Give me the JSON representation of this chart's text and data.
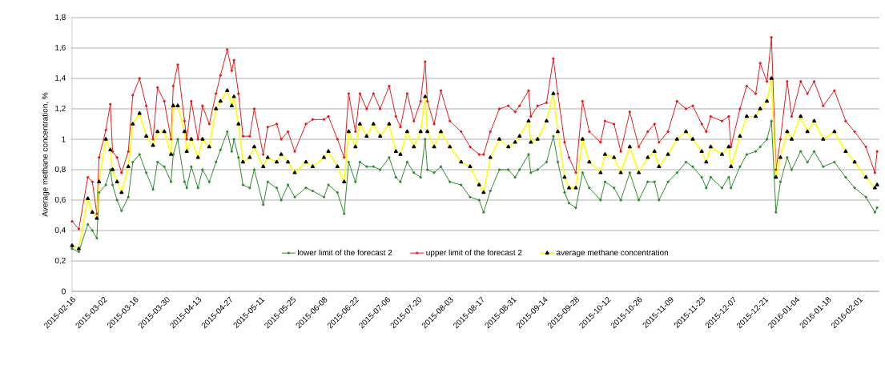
{
  "chart_data": {
    "type": "line",
    "ylabel": "Average methane concentration, %",
    "x": [
      "2015-02-16",
      "2015-02-19",
      "2015-02-23",
      "2015-02-25",
      "2015-02-27",
      "2015-02-28",
      "2015-03-03",
      "2015-03-05",
      "2015-03-06",
      "2015-03-08",
      "2015-03-10",
      "2015-03-13",
      "2015-03-15",
      "2015-03-18",
      "2015-03-21",
      "2015-03-24",
      "2015-03-26",
      "2015-03-29",
      "2015-04-01",
      "2015-04-02",
      "2015-04-04",
      "2015-04-07",
      "2015-04-08",
      "2015-04-10",
      "2015-04-13",
      "2015-04-15",
      "2015-04-18",
      "2015-04-21",
      "2015-04-23",
      "2015-04-26",
      "2015-04-28",
      "2015-04-29",
      "2015-05-01",
      "2015-05-03",
      "2015-05-06",
      "2015-05-08",
      "2015-05-12",
      "2015-05-14",
      "2015-05-18",
      "2015-05-20",
      "2015-05-23",
      "2015-05-26",
      "2015-05-31",
      "2015-06-03",
      "2015-06-08",
      "2015-06-10",
      "2015-06-14",
      "2015-06-17",
      "2015-06-19",
      "2015-06-22",
      "2015-06-24",
      "2015-06-27",
      "2015-06-30",
      "2015-07-03",
      "2015-07-07",
      "2015-07-10",
      "2015-07-12",
      "2015-07-15",
      "2015-07-18",
      "2015-07-21",
      "2015-07-23",
      "2015-07-24",
      "2015-07-27",
      "2015-07-30",
      "2015-08-03",
      "2015-08-08",
      "2015-08-12",
      "2015-08-16",
      "2015-08-18",
      "2015-08-21",
      "2015-08-25",
      "2015-08-29",
      "2015-09-01",
      "2015-09-03",
      "2015-09-07",
      "2015-09-08",
      "2015-09-11",
      "2015-09-15",
      "2015-09-18",
      "2015-09-20",
      "2015-09-23",
      "2015-09-25",
      "2015-09-28",
      "2015-10-01",
      "2015-10-04",
      "2015-10-09",
      "2015-10-11",
      "2015-10-15",
      "2015-10-18",
      "2015-10-22",
      "2015-10-26",
      "2015-10-30",
      "2015-11-02",
      "2015-11-04",
      "2015-11-08",
      "2015-11-12",
      "2015-11-16",
      "2015-11-19",
      "2015-11-23",
      "2015-11-25",
      "2015-11-27",
      "2015-12-02",
      "2015-12-05",
      "2015-12-06",
      "2015-12-10",
      "2015-12-13",
      "2015-12-17",
      "2015-12-19",
      "2015-12-22",
      "2015-12-24",
      "2015-12-26",
      "2015-12-28",
      "2015-12-31",
      "2016-01-02",
      "2016-01-06",
      "2016-01-09",
      "2016-01-12",
      "2016-01-16",
      "2016-01-21",
      "2016-01-26",
      "2016-01-30",
      "2016-02-04",
      "2016-02-08",
      "2016-02-09"
    ],
    "series": [
      {
        "name": "lower limit of the forecast 2",
        "color": "#2e8b2e",
        "marker": "circle",
        "values": [
          0.28,
          0.26,
          0.44,
          0.4,
          0.35,
          0.65,
          0.7,
          0.8,
          0.7,
          0.6,
          0.53,
          0.62,
          0.85,
          0.9,
          0.78,
          0.67,
          0.85,
          0.82,
          0.72,
          0.9,
          1.0,
          0.72,
          0.68,
          0.82,
          0.68,
          0.8,
          0.72,
          0.85,
          0.93,
          1.05,
          0.92,
          1.0,
          0.88,
          0.7,
          0.68,
          0.8,
          0.57,
          0.72,
          0.68,
          0.6,
          0.7,
          0.62,
          0.68,
          0.66,
          0.62,
          0.7,
          0.65,
          0.51,
          0.85,
          0.72,
          0.85,
          0.82,
          0.82,
          0.8,
          0.88,
          0.75,
          0.72,
          0.85,
          0.78,
          0.75,
          1.0,
          0.8,
          0.78,
          0.82,
          0.72,
          0.7,
          0.62,
          0.6,
          0.52,
          0.66,
          0.8,
          0.8,
          0.75,
          0.8,
          0.9,
          0.78,
          0.8,
          0.85,
          1.02,
          0.85,
          0.65,
          0.58,
          0.55,
          0.78,
          0.68,
          0.6,
          0.72,
          0.68,
          0.6,
          0.78,
          0.6,
          0.72,
          0.72,
          0.6,
          0.72,
          0.78,
          0.85,
          0.82,
          0.75,
          0.68,
          0.75,
          0.68,
          0.75,
          0.68,
          0.82,
          0.9,
          0.92,
          0.95,
          1.0,
          1.12,
          0.52,
          0.72,
          0.88,
          0.8,
          0.92,
          0.85,
          0.92,
          0.82,
          0.85,
          0.75,
          0.68,
          0.62,
          0.52,
          0.55
        ]
      },
      {
        "name": "upper limit of the forecast 2",
        "color": "#e41a1c",
        "marker": "circle",
        "values": [
          0.46,
          0.41,
          0.75,
          0.72,
          0.51,
          0.88,
          1.06,
          1.23,
          0.92,
          0.88,
          0.78,
          0.92,
          1.29,
          1.4,
          1.22,
          1.0,
          1.34,
          1.25,
          1.0,
          1.35,
          1.49,
          1.12,
          1.0,
          1.25,
          1.0,
          1.22,
          1.1,
          1.3,
          1.42,
          1.59,
          1.45,
          1.52,
          1.3,
          1.02,
          1.02,
          1.2,
          0.9,
          1.08,
          1.1,
          1.0,
          1.05,
          0.92,
          1.1,
          1.13,
          1.13,
          1.15,
          1.0,
          0.88,
          1.3,
          1.05,
          1.3,
          1.2,
          1.3,
          1.2,
          1.35,
          1.15,
          1.08,
          1.3,
          1.12,
          1.25,
          1.51,
          1.25,
          1.1,
          1.32,
          1.12,
          1.05,
          0.95,
          0.9,
          0.9,
          1.05,
          1.2,
          1.22,
          1.18,
          1.22,
          1.32,
          1.15,
          1.22,
          1.24,
          1.53,
          1.3,
          0.98,
          0.88,
          0.78,
          1.25,
          1.05,
          0.98,
          1.12,
          1.1,
          0.92,
          1.18,
          0.95,
          1.05,
          1.1,
          0.98,
          1.05,
          1.25,
          1.2,
          1.22,
          1.1,
          1.05,
          1.15,
          1.12,
          1.15,
          0.95,
          1.2,
          1.35,
          1.3,
          1.5,
          1.38,
          1.67,
          0.8,
          1.0,
          1.38,
          1.15,
          1.38,
          1.3,
          1.38,
          1.22,
          1.32,
          1.12,
          1.05,
          0.95,
          0.78,
          0.92
        ]
      },
      {
        "name": "average methane concentration",
        "color": "#ffff00",
        "marker": "triangle",
        "values": [
          0.3,
          0.28,
          0.61,
          0.52,
          0.48,
          0.72,
          1.0,
          0.93,
          0.8,
          0.72,
          0.65,
          0.82,
          1.1,
          1.17,
          1.02,
          0.96,
          1.05,
          1.05,
          0.9,
          1.22,
          1.22,
          1.05,
          0.92,
          1.0,
          0.88,
          1.0,
          0.95,
          1.2,
          1.25,
          1.32,
          1.22,
          1.28,
          1.1,
          0.85,
          0.88,
          0.95,
          0.82,
          0.88,
          0.85,
          0.9,
          0.85,
          0.78,
          0.85,
          0.82,
          0.88,
          0.92,
          0.82,
          0.72,
          1.05,
          0.95,
          1.1,
          1.02,
          1.1,
          1.02,
          1.1,
          0.92,
          0.9,
          1.05,
          0.95,
          1.05,
          1.28,
          1.05,
          0.95,
          1.05,
          0.95,
          0.85,
          0.82,
          0.7,
          0.65,
          0.88,
          1.0,
          0.95,
          0.98,
          1.02,
          1.12,
          0.98,
          1.0,
          1.12,
          1.3,
          1.05,
          0.75,
          0.68,
          0.68,
          1.0,
          0.85,
          0.78,
          0.9,
          0.88,
          0.78,
          0.95,
          0.78,
          0.88,
          0.92,
          0.82,
          0.9,
          1.0,
          1.05,
          1.0,
          0.92,
          0.85,
          0.95,
          0.9,
          0.95,
          0.82,
          1.02,
          1.15,
          1.15,
          1.2,
          1.25,
          1.4,
          0.75,
          0.88,
          1.05,
          1.0,
          1.15,
          1.05,
          1.12,
          1.0,
          1.05,
          0.92,
          0.85,
          0.75,
          0.68,
          0.7
        ]
      }
    ],
    "xlim": [
      "2015-02-16",
      "2016-02-10"
    ],
    "xticks": [
      "2015-02-16",
      "2015-03-02",
      "2015-03-16",
      "2015-03-30",
      "2015-04-13",
      "2015-04-27",
      "2015-05-11",
      "2015-05-25",
      "2015-06-08",
      "2015-06-22",
      "2015-07-06",
      "2015-07-20",
      "2015-08-03",
      "2015-08-17",
      "2015-08-31",
      "2015-09-14",
      "2015-09-28",
      "2015-10-12",
      "2015-10-26",
      "2015-11-09",
      "2015-11-23",
      "2015-12-07",
      "2015-12-21",
      "2016-01-04",
      "2016-01-18",
      "2016-02-01"
    ],
    "ylim": [
      0,
      1.8
    ],
    "yticks": [
      0,
      {
        "value": 0.2,
        "label": "0,2"
      },
      {
        "value": 0.4,
        "label": "0,4"
      },
      {
        "value": 0.6,
        "label": "0,6"
      },
      {
        "value": 0.8,
        "label": "0,8"
      },
      1,
      {
        "value": 1.2,
        "label": "1,2"
      },
      {
        "value": 1.4,
        "label": "1,4"
      },
      {
        "value": 1.6,
        "label": "1,6"
      },
      {
        "value": 1.8,
        "label": "1,8"
      }
    ],
    "grid": "y",
    "legend": "bottom",
    "line_style": "solid"
  }
}
